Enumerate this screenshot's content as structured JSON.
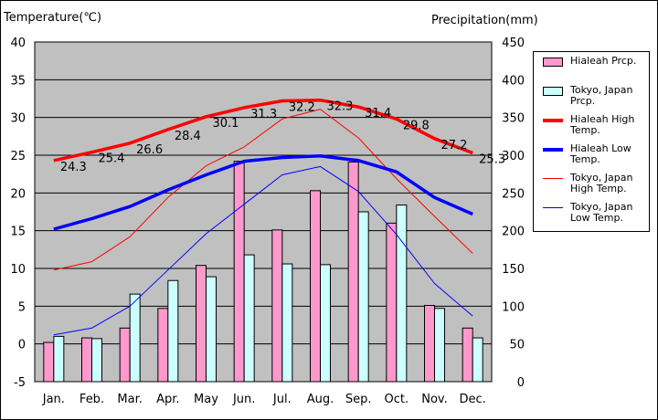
{
  "chart_data": {
    "type": "bar",
    "left_axis_title": "Temperature(℃)",
    "right_axis_title": "Precipitation(mm)",
    "categories": [
      "Jan.",
      "Feb.",
      "Mar.",
      "Apr.",
      "May",
      "Jun.",
      "Jul.",
      "Aug.",
      "Sep.",
      "Oct.",
      "Nov.",
      "Dec."
    ],
    "left_ylim": [
      -5,
      40
    ],
    "left_ticks": [
      "-5",
      "0",
      "5",
      "10",
      "15",
      "20",
      "25",
      "30",
      "35",
      "40"
    ],
    "right_ylim": [
      0,
      450
    ],
    "right_ticks": [
      "0",
      "50",
      "100",
      "150",
      "200",
      "250",
      "300",
      "350",
      "400",
      "450"
    ],
    "plot_background": "#c0c0c0",
    "grid": "horizontal",
    "legend_position": "right",
    "series": [
      {
        "name": "Hialeah Prcp.",
        "kind": "bar",
        "axis": "right",
        "color": "#ff99cc",
        "values": [
          52,
          58,
          71,
          97,
          154,
          292,
          201,
          253,
          291,
          210,
          101,
          71
        ]
      },
      {
        "name": "Tokyo, Japan Prcp.",
        "kind": "bar",
        "axis": "right",
        "color": "#ccffff",
        "values": [
          60,
          57,
          116,
          134,
          139,
          168,
          156,
          155,
          225,
          234,
          97,
          58
        ]
      },
      {
        "name": "Hialeah High Temp.",
        "kind": "line",
        "axis": "left",
        "color": "#ff0000",
        "width": 3.5,
        "values": [
          24.3,
          25.4,
          26.6,
          28.4,
          30.1,
          31.3,
          32.2,
          32.3,
          31.4,
          29.8,
          27.2,
          25.3
        ],
        "labels": [
          "24.3",
          "25.4",
          "26.6",
          "28.4",
          "30.1",
          "31.3",
          "32.2",
          "32.3",
          "31.4",
          "29.8",
          "27.2",
          "25.3"
        ]
      },
      {
        "name": "Hialeah Low Temp.",
        "kind": "line",
        "axis": "left",
        "color": "#0000ff",
        "width": 3.5,
        "values": [
          15.2,
          16.6,
          18.2,
          20.4,
          22.4,
          24.2,
          24.7,
          24.9,
          24.3,
          22.8,
          19.4,
          17.2
        ]
      },
      {
        "name": "Tokyo, Japan High Temp.",
        "kind": "line",
        "axis": "left",
        "color": "#ff0000",
        "width": 1,
        "values": [
          9.8,
          10.9,
          14.2,
          19.4,
          23.6,
          26.1,
          29.8,
          31.1,
          27.3,
          21.9,
          16.9,
          12.0
        ]
      },
      {
        "name": "Tokyo, Japan Low Temp.",
        "kind": "line",
        "axis": "left",
        "color": "#0000ff",
        "width": 1,
        "values": [
          1.2,
          2.1,
          5.0,
          9.8,
          14.6,
          18.5,
          22.4,
          23.5,
          20.2,
          14.5,
          8.0,
          3.7
        ]
      }
    ],
    "legend_lines": [
      [
        "Hialeah Prcp."
      ],
      [
        "Tokyo, Japan",
        "Prcp."
      ],
      [
        "Hialeah High",
        "Temp."
      ],
      [
        "Hialeah Low",
        "Temp."
      ],
      [
        "Tokyo, Japan",
        "High Temp."
      ],
      [
        "Tokyo, Japan",
        "Low Temp."
      ]
    ]
  }
}
